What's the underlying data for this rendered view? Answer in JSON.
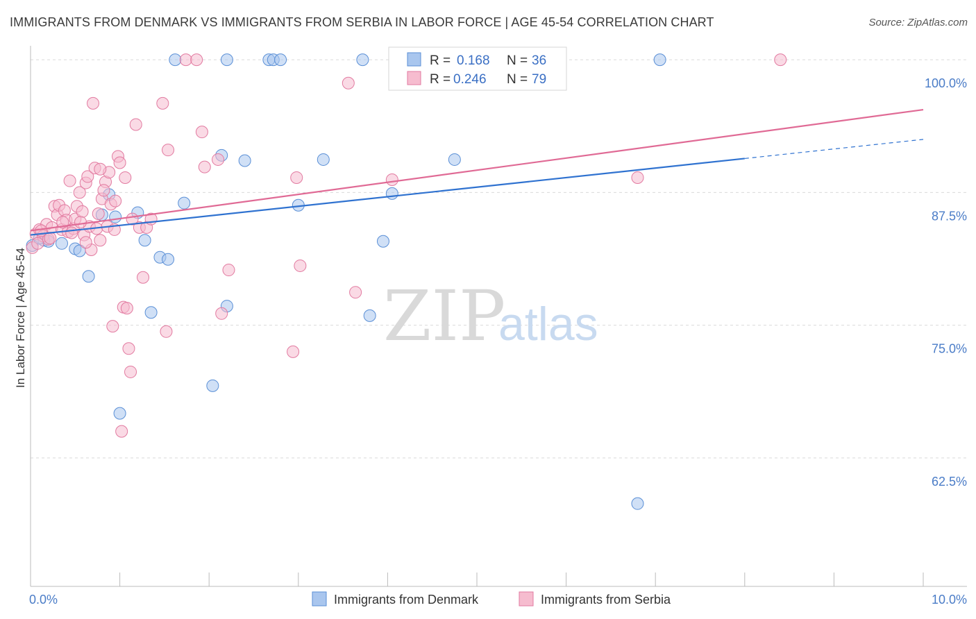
{
  "title": "IMMIGRANTS FROM DENMARK VS IMMIGRANTS FROM SERBIA IN LABOR FORCE | AGE 45-54 CORRELATION CHART",
  "source": "Source: ZipAtlas.com",
  "watermark": {
    "part1": "ZIP",
    "part2": "atlas"
  },
  "chart_data": {
    "type": "scatter",
    "title": "IMMIGRANTS FROM DENMARK VS IMMIGRANTS FROM SERBIA IN LABOR FORCE | AGE 45-54 CORRELATION CHART",
    "xlabel": "",
    "ylabel": "In Labor Force | Age 45-54",
    "xlim": [
      0,
      10
    ],
    "ylim": [
      50.4,
      100.4
    ],
    "x_tick_labels": [
      "0.0%",
      "10.0%"
    ],
    "y_ticks": [
      62.5,
      75.0,
      87.5,
      100.0
    ],
    "y_tick_labels": [
      "62.5%",
      "75.0%",
      "87.5%",
      "100.0%"
    ],
    "legend": {
      "r_label": "R =",
      "n_label": "N =",
      "entries": [
        {
          "name": "Immigrants from Denmark",
          "r": "0.168",
          "n": "36",
          "color": "#a9c6ee",
          "stroke": "#5a8fd6"
        },
        {
          "name": "Immigrants from Serbia",
          "r": "0.246",
          "n": "79",
          "color": "#f6bccf",
          "stroke": "#e27aa0"
        }
      ]
    },
    "series": [
      {
        "name": "Immigrants from Denmark",
        "color": "#a9c6ee",
        "stroke": "#5a8fd6",
        "line_color": "#2f72d0",
        "trend": {
          "x0": 0.0,
          "y0": 83.5,
          "x1": 8.0,
          "y1": 90.7,
          "dash_to_x": 10.0,
          "dash_to_y": 92.5
        },
        "points": [
          [
            0.02,
            82.5
          ],
          [
            0.15,
            83.0
          ],
          [
            0.2,
            82.9
          ],
          [
            0.35,
            82.7
          ],
          [
            0.5,
            82.2
          ],
          [
            0.55,
            82.0
          ],
          [
            0.65,
            79.6
          ],
          [
            0.8,
            85.4
          ],
          [
            0.88,
            87.3
          ],
          [
            0.95,
            85.2
          ],
          [
            1.0,
            66.7
          ],
          [
            1.2,
            85.6
          ],
          [
            1.28,
            83.0
          ],
          [
            1.35,
            76.2
          ],
          [
            1.45,
            81.4
          ],
          [
            1.54,
            81.2
          ],
          [
            1.62,
            100.0
          ],
          [
            1.72,
            86.5
          ],
          [
            2.04,
            69.3
          ],
          [
            2.14,
            91.0
          ],
          [
            2.2,
            100.0
          ],
          [
            2.2,
            76.8
          ],
          [
            2.4,
            90.5
          ],
          [
            2.67,
            100.0
          ],
          [
            2.72,
            100.0
          ],
          [
            2.8,
            100.0
          ],
          [
            3.0,
            86.3
          ],
          [
            3.28,
            90.6
          ],
          [
            3.72,
            100.0
          ],
          [
            3.8,
            75.9
          ],
          [
            3.95,
            82.9
          ],
          [
            4.05,
            87.4
          ],
          [
            4.75,
            90.6
          ],
          [
            6.8,
            58.2
          ],
          [
            7.05,
            100.0
          ],
          [
            0.1,
            83.2
          ]
        ]
      },
      {
        "name": "Immigrants from Serbia",
        "color": "#f6bccf",
        "stroke": "#e27aa0",
        "line_color": "#e06a95",
        "trend": {
          "x0": 0.0,
          "y0": 83.9,
          "x1": 10.0,
          "y1": 95.3
        },
        "points": [
          [
            0.02,
            82.3
          ],
          [
            0.06,
            83.6
          ],
          [
            0.1,
            84.0
          ],
          [
            0.14,
            83.4
          ],
          [
            0.18,
            84.5
          ],
          [
            0.2,
            83.1
          ],
          [
            0.24,
            84.2
          ],
          [
            0.27,
            86.2
          ],
          [
            0.3,
            85.4
          ],
          [
            0.32,
            86.3
          ],
          [
            0.35,
            84.0
          ],
          [
            0.38,
            85.8
          ],
          [
            0.4,
            84.9
          ],
          [
            0.42,
            83.8
          ],
          [
            0.44,
            88.6
          ],
          [
            0.48,
            84.1
          ],
          [
            0.5,
            85.0
          ],
          [
            0.52,
            86.2
          ],
          [
            0.55,
            87.5
          ],
          [
            0.58,
            85.7
          ],
          [
            0.6,
            83.5
          ],
          [
            0.62,
            88.4
          ],
          [
            0.64,
            89.0
          ],
          [
            0.66,
            84.3
          ],
          [
            0.68,
            82.1
          ],
          [
            0.7,
            95.9
          ],
          [
            0.72,
            89.8
          ],
          [
            0.74,
            84.1
          ],
          [
            0.76,
            85.5
          ],
          [
            0.78,
            83.0
          ],
          [
            0.8,
            86.9
          ],
          [
            0.84,
            88.5
          ],
          [
            0.86,
            84.3
          ],
          [
            0.88,
            89.4
          ],
          [
            0.9,
            86.4
          ],
          [
            0.92,
            74.9
          ],
          [
            0.95,
            86.7
          ],
          [
            0.98,
            90.9
          ],
          [
            1.0,
            90.3
          ],
          [
            1.02,
            65.0
          ],
          [
            1.04,
            76.7
          ],
          [
            1.06,
            88.9
          ],
          [
            1.08,
            76.6
          ],
          [
            1.1,
            72.8
          ],
          [
            1.12,
            70.6
          ],
          [
            1.18,
            93.9
          ],
          [
            1.22,
            84.2
          ],
          [
            1.26,
            79.5
          ],
          [
            1.3,
            84.2
          ],
          [
            1.35,
            85.0
          ],
          [
            1.48,
            95.9
          ],
          [
            1.52,
            74.4
          ],
          [
            1.54,
            91.5
          ],
          [
            1.74,
            100.0
          ],
          [
            1.86,
            100.0
          ],
          [
            1.92,
            93.2
          ],
          [
            1.95,
            89.9
          ],
          [
            2.1,
            90.6
          ],
          [
            2.14,
            76.1
          ],
          [
            2.22,
            80.2
          ],
          [
            2.94,
            72.5
          ],
          [
            2.98,
            88.9
          ],
          [
            3.02,
            80.6
          ],
          [
            3.56,
            97.8
          ],
          [
            3.64,
            78.1
          ],
          [
            4.05,
            88.7
          ],
          [
            6.8,
            88.9
          ],
          [
            8.4,
            100.0
          ],
          [
            0.08,
            82.7
          ],
          [
            0.12,
            83.9
          ],
          [
            0.22,
            83.2
          ],
          [
            0.36,
            84.7
          ],
          [
            0.46,
            83.7
          ],
          [
            0.56,
            84.7
          ],
          [
            0.82,
            87.7
          ],
          [
            0.94,
            84.0
          ],
          [
            0.62,
            82.8
          ],
          [
            0.78,
            89.7
          ],
          [
            1.14,
            85.0
          ]
        ]
      }
    ]
  }
}
